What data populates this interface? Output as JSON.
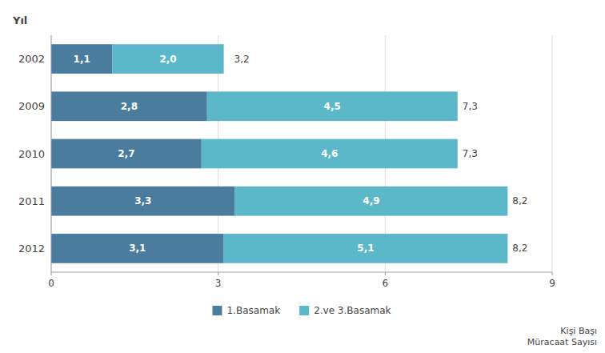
{
  "chart_data": {
    "type": "bar",
    "orientation": "horizontal",
    "stacked": true,
    "data_labels": true,
    "grid": true,
    "legend": "bottom",
    "x_label": "Kişi Başı\nMüracaat Sayısı",
    "y_label": "Yıl",
    "categories": [
      "2002",
      "2009",
      "2010",
      "2011",
      "2012"
    ],
    "series": [
      {
        "name": "1.Basamak",
        "color": "#4a7c9e",
        "values": [
          1.1,
          2.8,
          2.7,
          3.3,
          3.1
        ],
        "value_labels": [
          "1,1",
          "2,8",
          "2,7",
          "3,3",
          "3,1"
        ]
      },
      {
        "name": "2.ve 3.Basamak",
        "color": "#5bb8c8",
        "values": [
          2.0,
          4.5,
          4.6,
          4.9,
          5.1
        ],
        "value_labels": [
          "2,0",
          "4,5",
          "4,6",
          "4,9",
          "5,1"
        ]
      }
    ],
    "totals": [
      3.2,
      7.3,
      7.3,
      8.2,
      8.2
    ],
    "total_labels": [
      "3,2",
      "7,3",
      "7,3",
      "8,2",
      "8,2"
    ],
    "xlim": [
      0,
      9
    ],
    "xticks": [
      0,
      3,
      6,
      9
    ]
  }
}
